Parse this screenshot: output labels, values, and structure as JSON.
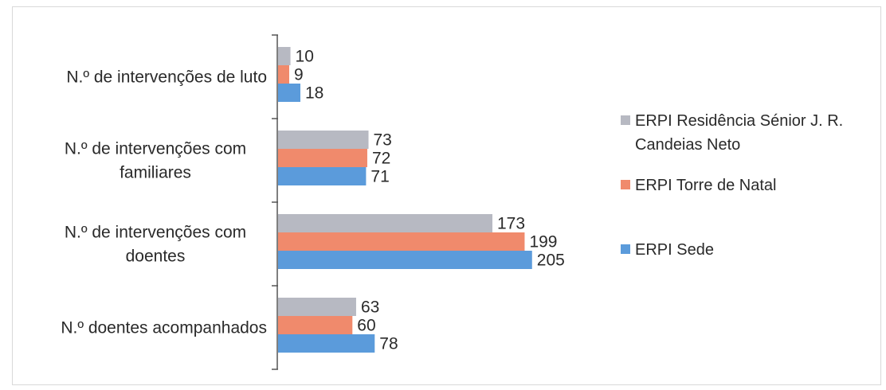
{
  "chart_data": {
    "type": "bar",
    "orientation": "horizontal",
    "title": "",
    "xlabel": "",
    "ylabel": "",
    "xlim": [
      0,
      205
    ],
    "grid": false,
    "legend_position": "right",
    "categories": [
      [
        "N.º de intervenções de luto"
      ],
      [
        "N.º de intervenções com",
        "familiares"
      ],
      [
        "N.º de intervenções com",
        "doentes"
      ],
      [
        "N.º doentes acompanhados"
      ]
    ],
    "series": [
      {
        "name": "ERPI Residência Sénior J. R. Candeias Neto",
        "legend_lines": [
          "ERPI Residência Sénior J. R.",
          "Candeias Neto"
        ],
        "color": "#b7b9c2",
        "values": [
          10,
          73,
          173,
          63
        ]
      },
      {
        "name": "ERPI Torre de Natal",
        "legend_lines": [
          "ERPI Torre de Natal"
        ],
        "color": "#f08a6c",
        "values": [
          9,
          72,
          199,
          60
        ]
      },
      {
        "name": "ERPI Sede",
        "legend_lines": [
          "ERPI Sede"
        ],
        "color": "#5b9bdb",
        "values": [
          18,
          71,
          205,
          78
        ]
      }
    ]
  }
}
